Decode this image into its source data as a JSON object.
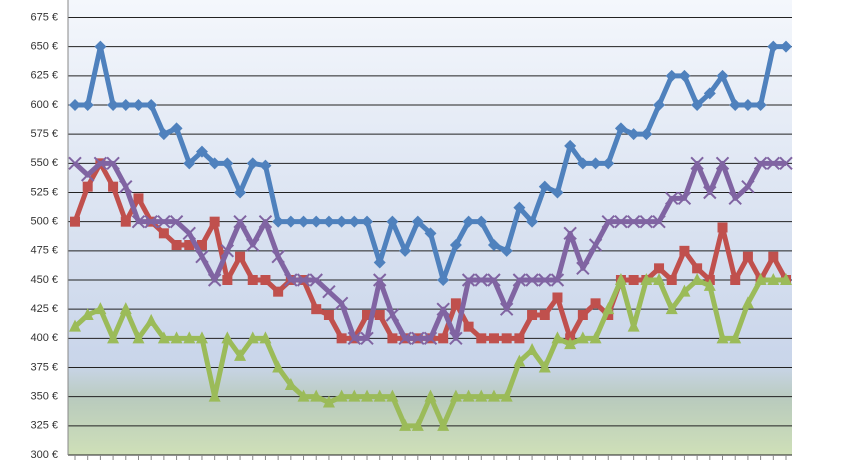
{
  "chart_data": {
    "type": "line",
    "ylim": [
      300,
      690
    ],
    "yticks": [
      {
        "value": 300,
        "label": "300 €"
      },
      {
        "value": 325,
        "label": "325 €"
      },
      {
        "value": 350,
        "label": "350 €"
      },
      {
        "value": 375,
        "label": "375 €"
      },
      {
        "value": 400,
        "label": "400 €"
      },
      {
        "value": 425,
        "label": "425 €"
      },
      {
        "value": 450,
        "label": "450 €"
      },
      {
        "value": 475,
        "label": "475 €"
      },
      {
        "value": 500,
        "label": "500 €"
      },
      {
        "value": 525,
        "label": "525 €"
      },
      {
        "value": 550,
        "label": "550 €"
      },
      {
        "value": 575,
        "label": "575 €"
      },
      {
        "value": 600,
        "label": "600 €"
      },
      {
        "value": 625,
        "label": "625 €"
      },
      {
        "value": 650,
        "label": "650 €"
      },
      {
        "value": 675,
        "label": "675 €"
      }
    ],
    "grid": true,
    "series": [
      {
        "color": "#4f81bd",
        "marker": "diamond",
        "values": [
          600,
          600,
          650,
          600,
          600,
          600,
          600,
          575,
          580,
          550,
          560,
          550,
          550,
          525,
          550,
          548,
          500,
          500,
          500,
          500,
          500,
          500,
          500,
          500,
          465,
          500,
          475,
          500,
          490,
          450,
          480,
          500,
          500,
          480,
          475,
          512,
          500,
          530,
          525,
          565,
          550,
          550,
          550,
          580,
          575,
          575,
          600,
          625,
          625,
          600,
          610,
          625,
          600,
          600,
          600,
          650,
          650
        ]
      },
      {
        "color": "#c0504d",
        "marker": "square",
        "values": [
          500,
          530,
          550,
          530,
          500,
          520,
          500,
          490,
          480,
          480,
          480,
          500,
          450,
          470,
          450,
          450,
          440,
          450,
          450,
          425,
          420,
          400,
          400,
          420,
          420,
          400,
          400,
          400,
          400,
          400,
          430,
          410,
          400,
          400,
          400,
          400,
          420,
          420,
          435,
          400,
          420,
          430,
          420,
          450,
          450,
          450,
          460,
          450,
          475,
          460,
          450,
          495,
          450,
          470,
          450,
          470,
          450
        ]
      },
      {
        "color": "#8064a2",
        "marker": "x",
        "values": [
          550,
          540,
          550,
          550,
          530,
          500,
          500,
          500,
          500,
          490,
          470,
          450,
          475,
          500,
          480,
          500,
          470,
          450,
          450,
          450,
          440,
          430,
          400,
          400,
          450,
          420,
          400,
          400,
          400,
          425,
          400,
          450,
          450,
          450,
          425,
          450,
          450,
          450,
          450,
          490,
          460,
          480,
          500,
          500,
          500,
          500,
          500,
          520,
          520,
          550,
          525,
          550,
          520,
          530,
          550,
          550,
          550
        ]
      },
      {
        "color": "#9bbb59",
        "marker": "triangle",
        "values": [
          410,
          420,
          425,
          400,
          425,
          400,
          415,
          400,
          400,
          400,
          400,
          350,
          400,
          385,
          400,
          400,
          375,
          360,
          350,
          350,
          345,
          350,
          350,
          350,
          350,
          350,
          325,
          325,
          350,
          325,
          350,
          350,
          350,
          350,
          350,
          380,
          390,
          375,
          400,
          395,
          400,
          400,
          425,
          450,
          410,
          450,
          450,
          425,
          440,
          450,
          445,
          400,
          400,
          430,
          450,
          450,
          450
        ]
      }
    ]
  }
}
